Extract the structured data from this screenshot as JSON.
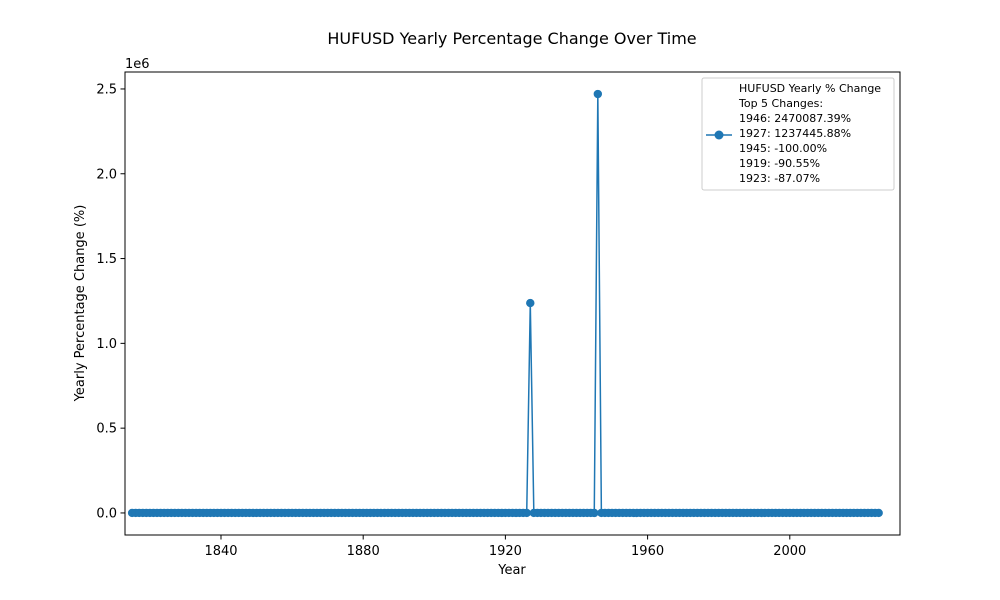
{
  "chart_data": {
    "type": "line",
    "title": "HUFUSD Yearly Percentage Change Over Time",
    "xlabel": "Year",
    "ylabel": "Yearly Percentage Change (%)",
    "y_offset_label": "1e6",
    "y_multiplier": 1000000,
    "xlim": [
      1813,
      2031
    ],
    "ylim": [
      -130000,
      2600000
    ],
    "x_ticks": [
      1840,
      1880,
      1920,
      1960,
      2000
    ],
    "x_tick_labels": [
      "1840",
      "1880",
      "1920",
      "1960",
      "2000"
    ],
    "y_ticks": [
      0,
      500000,
      1000000,
      1500000,
      2000000,
      2500000
    ],
    "y_tick_labels": [
      "0.0",
      "0.5",
      "1.0",
      "1.5",
      "2.0",
      "2.5"
    ],
    "grid": false,
    "legend_position": "top-right",
    "x_start": 1815,
    "x_end": 2025,
    "series": [
      {
        "name": "HUFUSD Yearly % Change",
        "color": "#1f77b4",
        "marker": "circle",
        "baseline_value": 0,
        "points": [
          {
            "x": 1919,
            "y": -90.55
          },
          {
            "x": 1923,
            "y": -87.07
          },
          {
            "x": 1927,
            "y": 1237445.88
          },
          {
            "x": 1945,
            "y": -100.0
          },
          {
            "x": 1946,
            "y": 2470087.39
          }
        ]
      }
    ],
    "legend": {
      "lines": [
        "HUFUSD Yearly % Change",
        "Top 5 Changes:",
        "1946: 2470087.39%",
        "1927: 1237445.88%",
        "1945: -100.00%",
        "1919: -90.55%",
        "1923: -87.07%"
      ]
    }
  }
}
